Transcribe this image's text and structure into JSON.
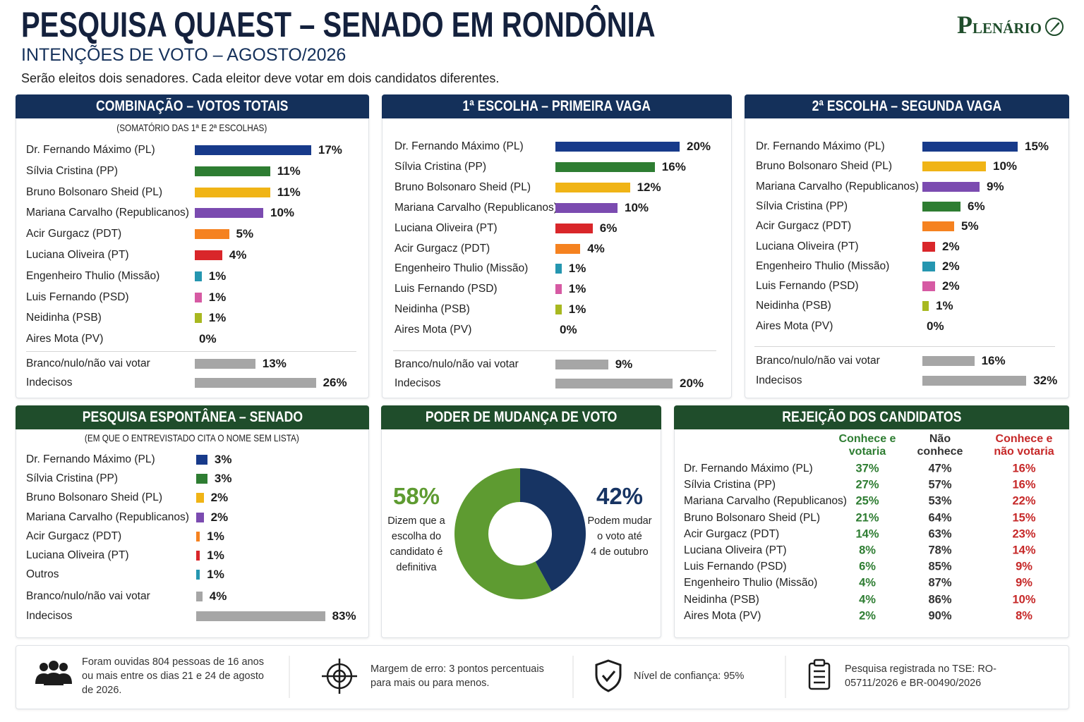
{
  "header": {
    "title": "PESQUISA QUAEST – SENADO EM RONDÔNIA",
    "subtitle": "INTENÇÕES DE VOTO – AGOSTO/2026",
    "note": "Serão eleitos dois senadores. Cada eleitor deve votar em dois candidatos diferentes.",
    "logo": "PLENÁRIO"
  },
  "chart_data": [
    {
      "type": "bar",
      "title": "COMBINAÇÃO – VOTOS TOTAIS",
      "subtitle": "(SOMATÓRIO DAS 1ª E 2ª ESCOLHAS)",
      "groups": [
        {
          "categories": [
            "Dr. Fernando Máximo (PL)",
            "Sílvia Cristina (PP)",
            "Bruno Bolsonaro Sheid (PL)",
            "Mariana Carvalho (Republicanos)",
            "Acir Gurgacz (PDT)",
            "Luciana Oliveira (PT)",
            "Engenheiro Thulio (Missão)",
            "Luis Fernando (PSD)",
            "Neidinha (PSB)",
            "Aires Mota (PV)"
          ],
          "values": [
            17,
            11,
            11,
            10,
            5,
            4,
            1,
            1,
            1,
            0
          ],
          "value_labels": [
            "17%",
            "11%",
            "11%",
            "10%",
            "5%",
            "4%",
            "1%",
            "1%",
            "1%",
            "0%"
          ],
          "colors": [
            "#173a8a",
            "#2e7d32",
            "#f0b416",
            "#7b4bb0",
            "#f58220",
            "#d9262a",
            "#2596b0",
            "#d65aa3",
            "#a8b820",
            null
          ]
        },
        {
          "categories": [
            "Branco/nulo/não vai votar",
            "Indecisos"
          ],
          "values": [
            13,
            26
          ],
          "value_labels": [
            "13%",
            "26%"
          ],
          "colors": [
            "#a6a6a6",
            "#a6a6a6"
          ]
        }
      ]
    },
    {
      "type": "bar",
      "title": "1ª ESCOLHA – PRIMEIRA VAGA",
      "groups": [
        {
          "categories": [
            "Dr. Fernando Máximo (PL)",
            "Sílvia Cristina (PP)",
            "Bruno Bolsonaro Sheid (PL)",
            "Mariana Carvalho (Republicanos)",
            "Luciana Oliveira (PT)",
            "Acir Gurgacz (PDT)",
            "Engenheiro Thulio (Missão)",
            "Luis Fernando (PSD)",
            "Neidinha (PSB)",
            "Aires Mota (PV)"
          ],
          "values": [
            20,
            16,
            12,
            10,
            6,
            4,
            1,
            1,
            1,
            0
          ],
          "value_labels": [
            "20%",
            "16%",
            "12%",
            "10%",
            "6%",
            "4%",
            "1%",
            "1%",
            "1%",
            "0%"
          ],
          "colors": [
            "#173a8a",
            "#2e7d32",
            "#f0b416",
            "#7b4bb0",
            "#d9262a",
            "#f58220",
            "#2596b0",
            "#d65aa3",
            "#a8b820",
            null
          ]
        },
        {
          "categories": [
            "Branco/nulo/não vai votar",
            "Indecisos"
          ],
          "values": [
            9,
            20
          ],
          "value_labels": [
            "9%",
            "20%"
          ],
          "colors": [
            "#a6a6a6",
            "#a6a6a6"
          ]
        }
      ]
    },
    {
      "type": "bar",
      "title": "2ª ESCOLHA – SEGUNDA VAGA",
      "groups": [
        {
          "categories": [
            "Dr. Fernando Máximo (PL)",
            "Bruno Bolsonaro Sheid (PL)",
            "Mariana Carvalho (Republicanos)",
            "Sílvia Cristina (PP)",
            "Acir Gurgacz (PDT)",
            "Luciana Oliveira (PT)",
            "Engenheiro Thulio (Missão)",
            "Luis Fernando (PSD)",
            "Neidinha (PSB)",
            "Aires Mota (PV)"
          ],
          "values": [
            15,
            10,
            9,
            6,
            5,
            2,
            2,
            2,
            1,
            0
          ],
          "value_labels": [
            "15%",
            "10%",
            "9%",
            "6%",
            "5%",
            "2%",
            "2%",
            "2%",
            "1%",
            "0%"
          ],
          "colors": [
            "#173a8a",
            "#f0b416",
            "#7b4bb0",
            "#2e7d32",
            "#f58220",
            "#d9262a",
            "#2596b0",
            "#d65aa3",
            "#a8b820",
            null
          ]
        },
        {
          "categories": [
            "Branco/nulo/não vai votar",
            "Indecisos"
          ],
          "values": [
            16,
            32
          ],
          "value_labels": [
            "16%",
            "32%"
          ],
          "colors": [
            "#a6a6a6",
            "#a6a6a6"
          ]
        }
      ]
    },
    {
      "type": "bar",
      "title": "PESQUISA ESPONTÂNEA – SENADO",
      "subtitle": "(EM QUE O ENTREVISTADO CITA O NOME SEM LISTA)",
      "groups": [
        {
          "categories": [
            "Dr. Fernando Máximo (PL)",
            "Sílvia Cristina (PP)",
            "Bruno Bolsonaro Sheid (PL)",
            "Mariana Carvalho (Republicanos)",
            "Acir Gurgacz (PDT)",
            "Luciana Oliveira (PT)",
            "Outros"
          ],
          "values": [
            3,
            3,
            2,
            2,
            1,
            1,
            1
          ],
          "value_labels": [
            "3%",
            "3%",
            "2%",
            "2%",
            "1%",
            "1%",
            "1%"
          ],
          "colors": [
            "#173a8a",
            "#2e7d32",
            "#f0b416",
            "#7b4bb0",
            "#f58220",
            "#d9262a",
            "#2596b0"
          ]
        },
        {
          "categories": [
            "Branco/nulo/não vai votar",
            "Indecisos"
          ],
          "values": [
            4,
            83
          ],
          "value_labels": [
            "4%",
            "83%"
          ],
          "colors": [
            "#a6a6a6",
            "#a6a6a6"
          ]
        }
      ]
    },
    {
      "type": "pie",
      "title": "PODER DE MUDANÇA DE VOTO",
      "values": [
        58,
        42
      ],
      "value_labels": [
        "58%",
        "42%"
      ],
      "colors": [
        "#5e9b31",
        "#173463"
      ],
      "captions": [
        [
          "Dizem que a",
          "escolha do",
          "candidato é",
          "definitiva"
        ],
        [
          "Podem mudar",
          "o voto até",
          "4 de outubro"
        ]
      ]
    }
  ],
  "table": {
    "title": "REJEIÇÃO DOS CANDIDATOS",
    "columns": [
      [
        "Conhece e",
        "votaria"
      ],
      [
        "Não",
        "conhece"
      ],
      [
        "Conhece e",
        "não votaria"
      ]
    ],
    "rows": [
      [
        "Dr. Fernando Máximo (PL)",
        "37%",
        "47%",
        "16%"
      ],
      [
        "Sílvia Cristina (PP)",
        "27%",
        "57%",
        "16%"
      ],
      [
        "Mariana Carvalho (Republicanos)",
        "25%",
        "53%",
        "22%"
      ],
      [
        "Bruno Bolsonaro Sheid (PL)",
        "21%",
        "64%",
        "15%"
      ],
      [
        "Acir Gurgacz (PDT)",
        "14%",
        "63%",
        "23%"
      ],
      [
        "Luciana Oliveira (PT)",
        "8%",
        "78%",
        "14%"
      ],
      [
        "Luis Fernando (PSD)",
        "6%",
        "85%",
        "9%"
      ],
      [
        "Engenheiro Thulio (Missão)",
        "4%",
        "87%",
        "9%"
      ],
      [
        "Neidinha (PSB)",
        "4%",
        "86%",
        "10%"
      ],
      [
        "Aires Mota (PV)",
        "2%",
        "90%",
        "8%"
      ]
    ]
  },
  "footer": {
    "items": [
      "Foram ouvidas 804 pessoas de 16 anos ou mais entre os dias 21 e 24 de agosto de 2026.",
      "Margem de erro: 3 pontos percentuais para mais ou para menos.",
      "Nível de confiança: 95%",
      "Pesquisa registrada no TSE: RO-05711/2026 e BR-00490/2026"
    ]
  }
}
